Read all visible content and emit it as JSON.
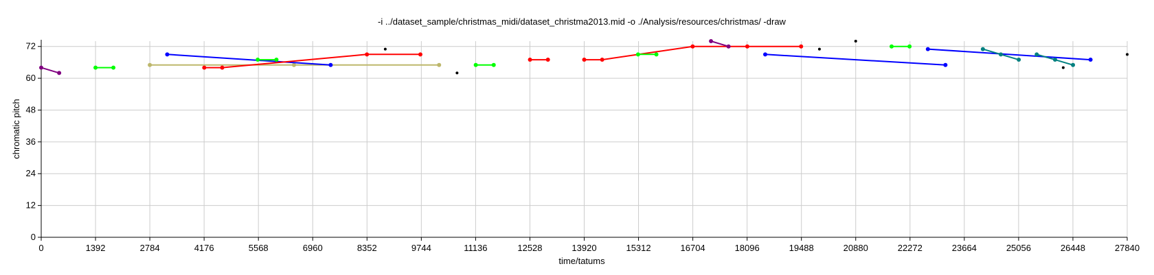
{
  "chart_data": {
    "type": "line",
    "title": "-i ../dataset_sample/christmas_midi/dataset_christma2013.mid -o ./Analysis/resources/christmas/ -draw",
    "xlabel": "time/tatums",
    "ylabel": "chromatic pitch",
    "xlim": [
      0,
      27840
    ],
    "ylim": [
      0,
      74
    ],
    "xticks": [
      0,
      1392,
      2784,
      4176,
      5568,
      6960,
      8352,
      9744,
      11136,
      12528,
      13920,
      15312,
      16704,
      18096,
      19488,
      20880,
      22272,
      23664,
      25056,
      26448,
      27840
    ],
    "yticks": [
      0,
      12,
      24,
      36,
      48,
      60,
      72
    ],
    "grid": true,
    "series": [
      {
        "color": "#800080",
        "points": [
          [
            0,
            64
          ],
          [
            460,
            62
          ]
        ]
      },
      {
        "color": "#00ff00",
        "points": [
          [
            1392,
            64
          ],
          [
            1850,
            64
          ]
        ]
      },
      {
        "color": "#bdb76b",
        "points": [
          [
            2784,
            65
          ],
          [
            6480,
            65
          ],
          [
            10200,
            65
          ]
        ]
      },
      {
        "color": "#0000ff",
        "points": [
          [
            3230,
            69
          ],
          [
            7420,
            65
          ]
        ]
      },
      {
        "color": "#ff0000",
        "points": [
          [
            4180,
            64
          ],
          [
            4640,
            64
          ],
          [
            8350,
            69
          ],
          [
            9720,
            69
          ]
        ]
      },
      {
        "color": "#00ff00",
        "points": [
          [
            5550,
            67
          ],
          [
            6030,
            67
          ]
        ]
      },
      {
        "color": "#00ff00",
        "points": [
          [
            11140,
            65
          ],
          [
            11600,
            65
          ]
        ]
      },
      {
        "color": "#ff0000",
        "points": [
          [
            12530,
            67
          ],
          [
            12990,
            67
          ]
        ]
      },
      {
        "color": "#ff0000",
        "points": [
          [
            13920,
            67
          ],
          [
            14380,
            67
          ],
          [
            16700,
            72
          ],
          [
            18100,
            72
          ],
          [
            19480,
            72
          ]
        ]
      },
      {
        "color": "#00ff00",
        "points": [
          [
            15300,
            69
          ],
          [
            15770,
            69
          ]
        ]
      },
      {
        "color": "#800080",
        "points": [
          [
            17170,
            74
          ],
          [
            17620,
            72
          ]
        ]
      },
      {
        "color": "#0000ff",
        "points": [
          [
            18560,
            69
          ],
          [
            23180,
            65
          ]
        ]
      },
      {
        "color": "#00ff00",
        "points": [
          [
            21800,
            72
          ],
          [
            22260,
            72
          ]
        ]
      },
      {
        "color": "#0000ff",
        "points": [
          [
            22730,
            71
          ],
          [
            26900,
            67
          ]
        ]
      },
      {
        "color": "#008080",
        "points": [
          [
            24140,
            71
          ],
          [
            24600,
            69
          ],
          [
            25060,
            67
          ]
        ]
      },
      {
        "color": "#008080",
        "points": [
          [
            25520,
            69
          ],
          [
            25990,
            67
          ],
          [
            26450,
            65
          ]
        ]
      },
      {
        "color": "#000000",
        "points": [
          [
            8820,
            71
          ]
        ]
      },
      {
        "color": "#000000",
        "points": [
          [
            10660,
            62
          ]
        ]
      },
      {
        "color": "#000000",
        "points": [
          [
            19950,
            71
          ]
        ]
      },
      {
        "color": "#000000",
        "points": [
          [
            20880,
            74
          ]
        ]
      },
      {
        "color": "#000000",
        "points": [
          [
            26200,
            64
          ]
        ]
      },
      {
        "color": "#000000",
        "points": [
          [
            27840,
            69
          ]
        ]
      }
    ]
  }
}
